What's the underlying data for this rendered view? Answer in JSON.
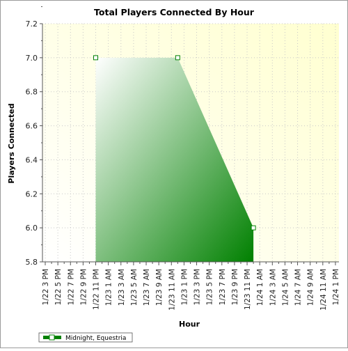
{
  "chart_data": {
    "type": "area",
    "title": "Total Players Connected By Hour",
    "xlabel": "Hour",
    "ylabel": "Players Connected",
    "ylim": [
      5.8,
      7.2
    ],
    "yticks": [
      "5.8",
      "6.0",
      "6.2",
      "6.4",
      "6.6",
      "6.8",
      "7.0",
      "7.2"
    ],
    "categories": [
      "1/22 3 PM",
      "1/22 5 PM",
      "1/22 7 PM",
      "1/22 9 PM",
      "1/22 11 PM",
      "1/23 1 AM",
      "1/23 3 AM",
      "1/23 5 AM",
      "1/23 7 AM",
      "1/23 9 AM",
      "1/23 11 AM",
      "1/23 1 PM",
      "1/23 3 PM",
      "1/23 5 PM",
      "1/23 7 PM",
      "1/23 9 PM",
      "1/23 11 PM",
      "1/24 1 AM",
      "1/24 3 AM",
      "1/24 5 AM",
      "1/24 7 AM",
      "1/24 9 AM",
      "1/24 11 AM",
      "1/24 1 PM"
    ],
    "series": [
      {
        "name": "Midnight, Equestria",
        "color": "#008000",
        "points": [
          {
            "x": "1/22 11 PM",
            "y": 7.0
          },
          {
            "x": "1/23 12 PM",
            "y": 7.0
          },
          {
            "x": "1/24 12 AM",
            "y": 6.0
          }
        ]
      }
    ],
    "grid": true,
    "legend": "bottom-left",
    "background": "#ffffe0"
  }
}
